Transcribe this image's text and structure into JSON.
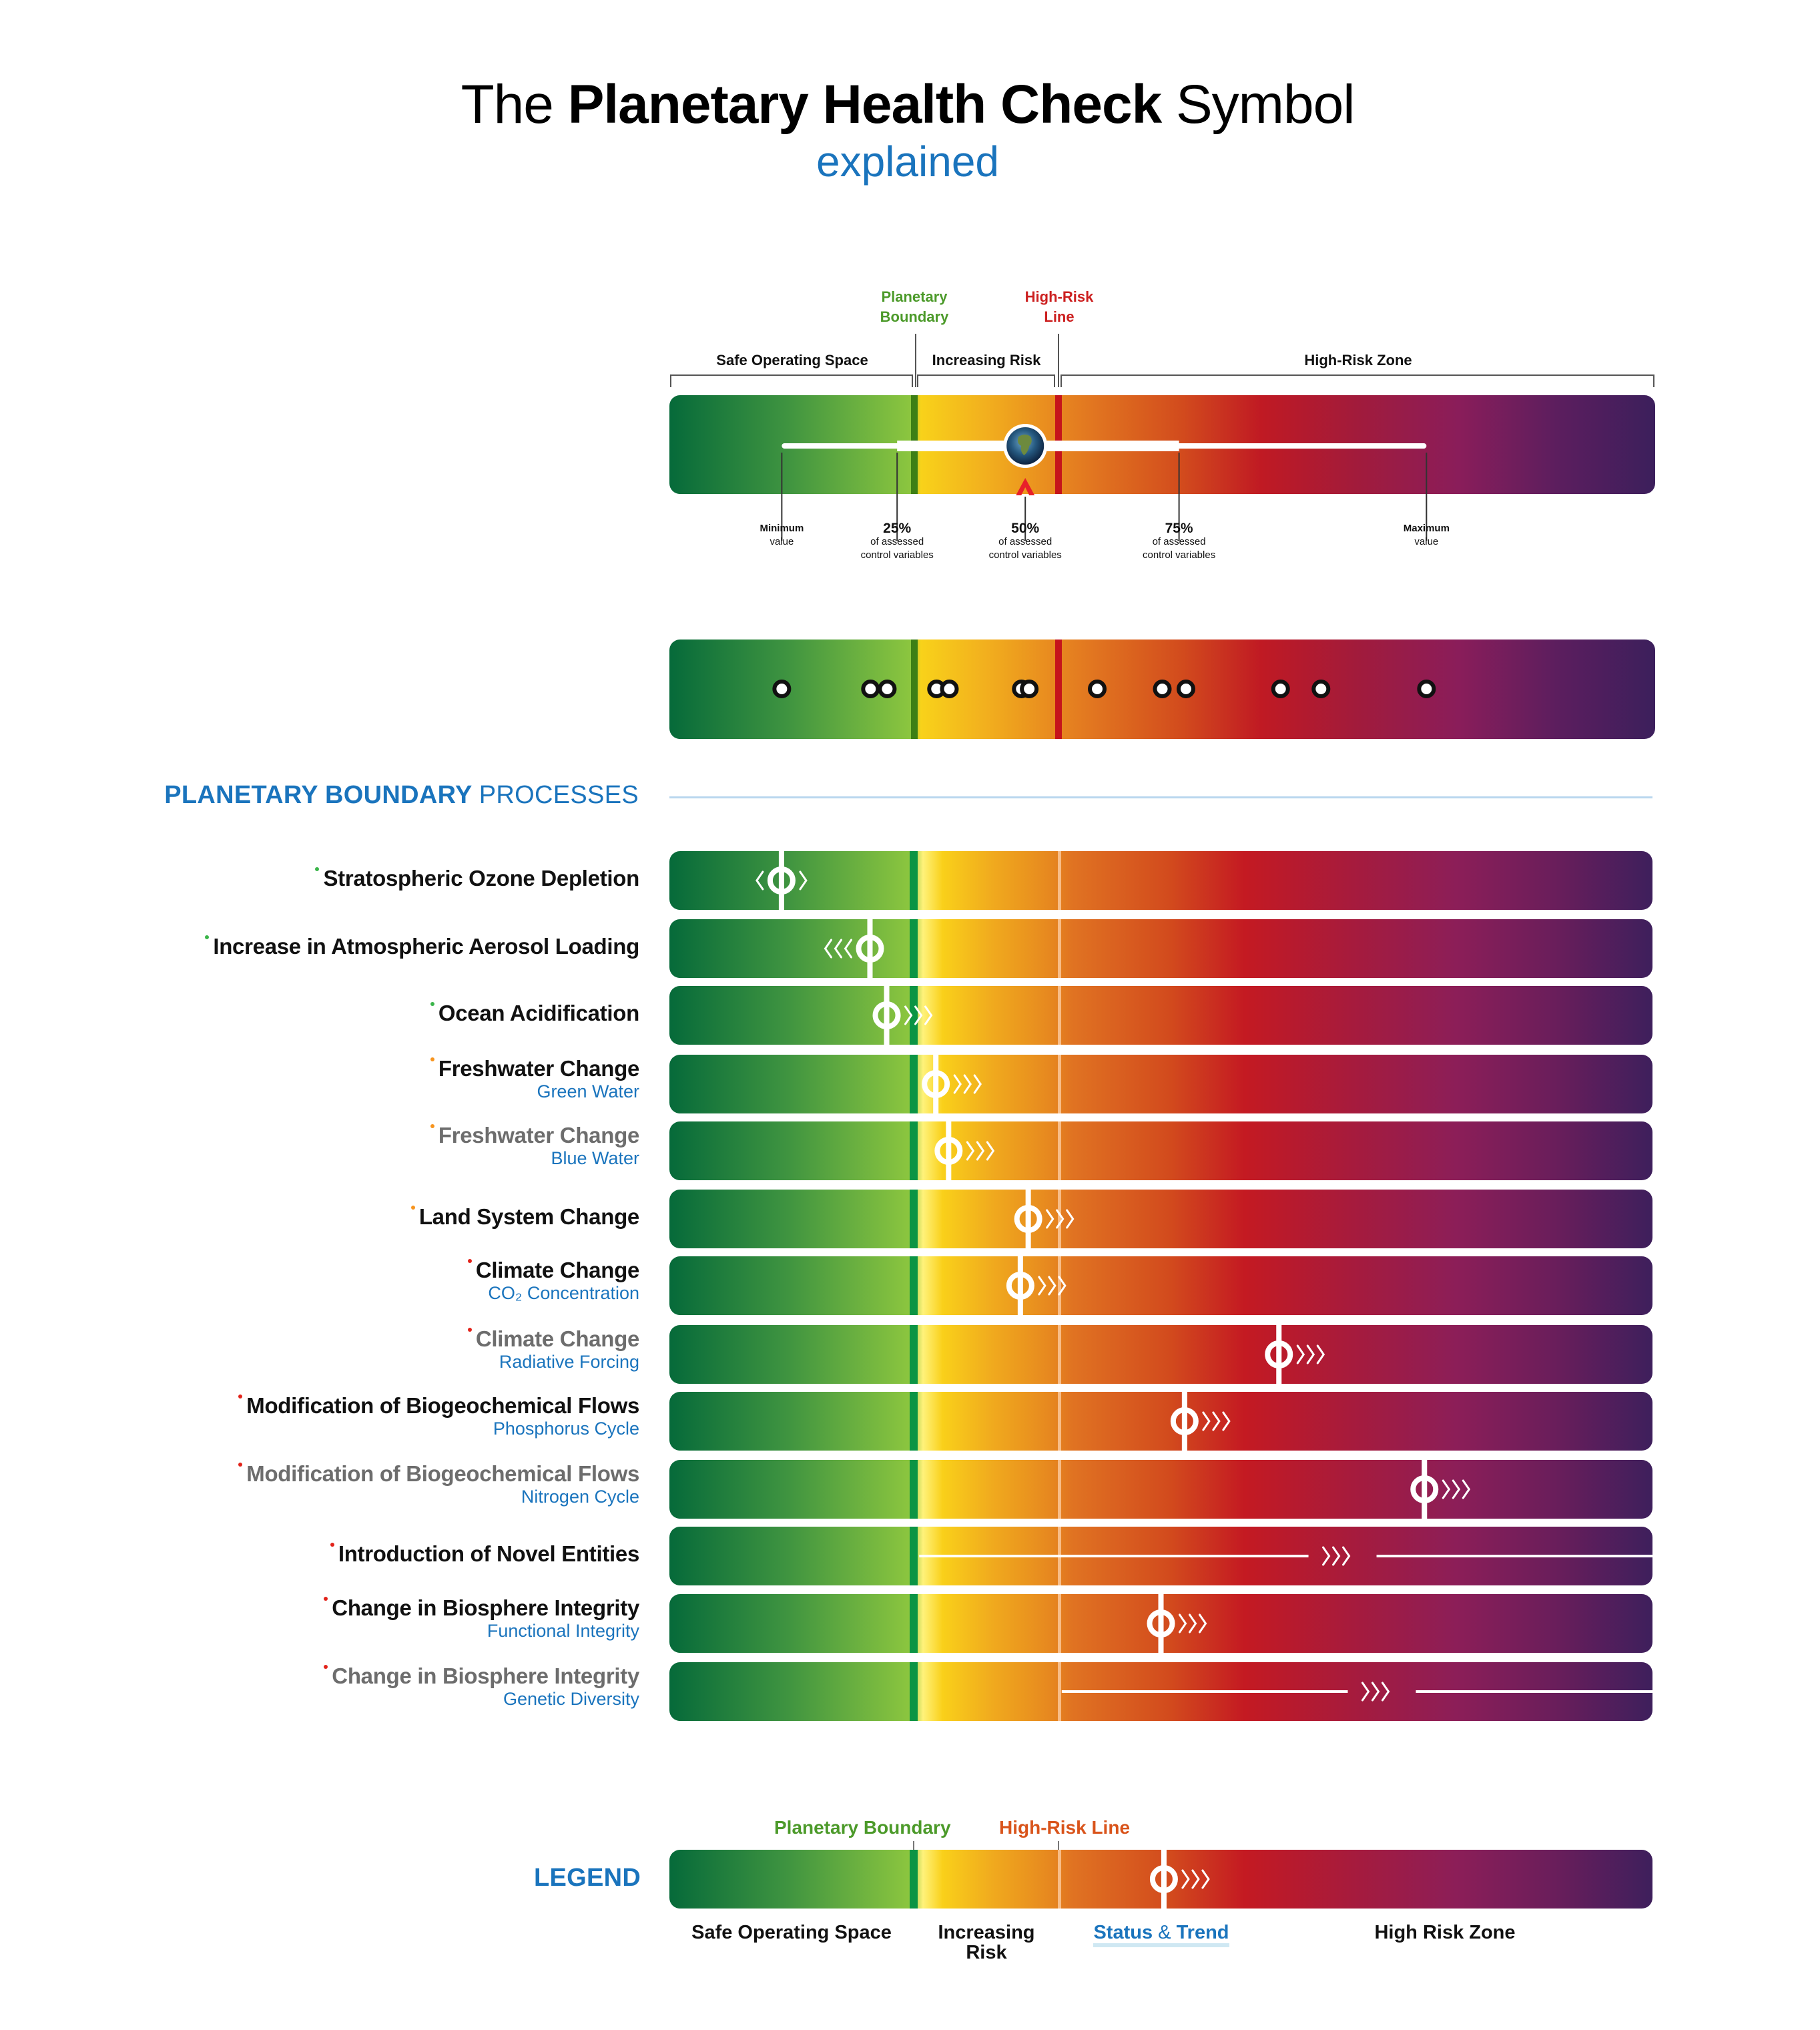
{
  "header": {
    "title_prefix": "The",
    "title_bold": "Planetary Health Check",
    "title_suffix": "Symbol",
    "subtitle": "explained"
  },
  "explainer": {
    "markers": {
      "planetary_boundary": [
        "Planetary",
        "Boundary"
      ],
      "high_risk_line": [
        "High-Risk",
        "Line"
      ]
    },
    "zones": {
      "safe": "Safe Operating Space",
      "increasing": "Increasing Risk",
      "high_risk": "High-Risk Zone"
    },
    "boundary_position": 0.247,
    "high_risk_position": 0.395,
    "range": {
      "minimum_position": 0.114,
      "p25_position": 0.231,
      "p50_position": 0.361,
      "p75_position": 0.517,
      "maximum_position": 0.768
    },
    "ticks": [
      {
        "id": "min",
        "big": "Minimum",
        "small": "value",
        "style": "minmax"
      },
      {
        "id": "p25",
        "big": "25%",
        "small": "of assessed",
        "small2": "control variables",
        "style": "pct"
      },
      {
        "id": "p50",
        "big": "50%",
        "small": "of assessed",
        "small2": "control variables",
        "style": "pct"
      },
      {
        "id": "p75",
        "big": "75%",
        "small": "of assessed",
        "small2": "control variables",
        "style": "pct"
      },
      {
        "id": "max",
        "big": "Maximum",
        "small": "value",
        "style": "minmax"
      }
    ],
    "globe_icon": "earth-globe-icon",
    "median_arrow_icon": "red-caret-up-icon",
    "dot_positions": [
      0.114,
      0.204,
      0.221,
      0.271,
      0.284,
      0.357,
      0.365,
      0.434,
      0.5,
      0.524,
      0.62,
      0.661,
      0.768
    ]
  },
  "section": {
    "heading_bold": "PLANETARY BOUNDARY",
    "heading_light": "PROCESSES"
  },
  "colors": {
    "accent_blue": "#1a74bd",
    "boundary_green": "#0b9444",
    "high_risk_red": "#c5141b",
    "dot_green": "#3bb54a",
    "dot_orange": "#f7941d",
    "dot_red": "#e2231a"
  },
  "processes": [
    {
      "name": "Stratospheric Ozone Depletion",
      "sub": "",
      "dot": "green",
      "dim": false,
      "status": 0.114,
      "trend": "both"
    },
    {
      "name": "Increase in Atmospheric Aerosol Loading",
      "sub": "",
      "dot": "green",
      "dim": false,
      "status": 0.204,
      "trend": "left"
    },
    {
      "name": "Ocean Acidification",
      "sub": "",
      "dot": "green",
      "dim": false,
      "status": 0.221,
      "trend": "right"
    },
    {
      "name": "Freshwater Change",
      "sub": "Green Water",
      "dot": "orange",
      "dim": false,
      "status": 0.271,
      "trend": "right"
    },
    {
      "name": "Freshwater Change",
      "sub": "Blue Water",
      "dot": "orange",
      "dim": true,
      "status": 0.284,
      "trend": "right"
    },
    {
      "name": "Land System Change",
      "sub": "",
      "dot": "orange",
      "dim": false,
      "status": 0.365,
      "trend": "right"
    },
    {
      "name": "Climate Change",
      "sub": "CO₂ Concentration",
      "dot": "red",
      "dim": false,
      "status": 0.357,
      "trend": "right"
    },
    {
      "name": "Climate Change",
      "sub": "Radiative Forcing",
      "dot": "red",
      "dim": true,
      "status": 0.62,
      "trend": "right"
    },
    {
      "name": "Modification of Biogeochemical Flows",
      "sub": "Phosphorus Cycle",
      "dot": "red",
      "dim": false,
      "status": 0.524,
      "trend": "right"
    },
    {
      "name": "Modification of Biogeochemical Flows",
      "sub": "Nitrogen Cycle",
      "dot": "red",
      "dim": true,
      "status": 0.768,
      "trend": "right"
    },
    {
      "name": "Introduction of Novel Entities",
      "sub": "",
      "dot": "red",
      "dim": false,
      "status": null,
      "range_from": 0.25,
      "trend": "right",
      "trend_at": 0.665
    },
    {
      "name": "Change in Biosphere Integrity",
      "sub": "Functional Integrity",
      "dot": "red",
      "dim": false,
      "status": 0.5,
      "trend": "right"
    },
    {
      "name": "Change in Biosphere Integrity",
      "sub": "Genetic Diversity",
      "dot": "red",
      "dim": true,
      "status": null,
      "range_from": 0.395,
      "trend": "right",
      "trend_at": 0.705
    }
  ],
  "legend": {
    "title": "LEGEND",
    "planetary_boundary": "Planetary Boundary",
    "high_risk_line": "High-Risk Line",
    "safe": "Safe Operating Space",
    "increasing_1": "Increasing",
    "increasing_2": "Risk",
    "status_word": "Status",
    "status_amp": "&",
    "status_trend_word": "Trend",
    "high_risk": "High Risk Zone",
    "example_status": 0.503,
    "example_trend": "right"
  }
}
